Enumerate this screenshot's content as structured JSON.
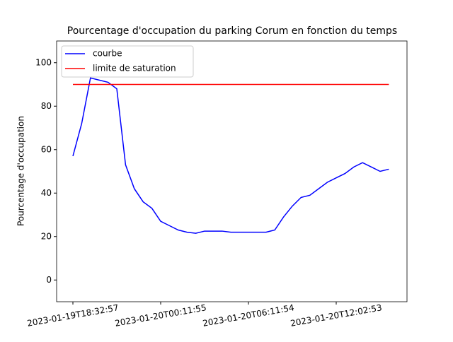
{
  "chart_data": {
    "type": "line",
    "title": "Pourcentage d'occupation du parking Corum en fonction du temps",
    "y_label": "Pourcentage d'occupation",
    "categories": [
      "2023-01-19T18:32:57",
      null,
      null,
      null,
      null,
      null,
      null,
      null,
      null,
      null,
      "2023-01-20T00:11:55",
      null,
      null,
      null,
      null,
      null,
      null,
      null,
      null,
      null,
      "2023-01-20T06:11:54",
      null,
      null,
      null,
      null,
      null,
      null,
      null,
      null,
      null,
      "2023-01-20T12:02:53",
      null,
      null,
      null,
      null,
      null,
      null
    ],
    "series": [
      {
        "name": "courbe",
        "color": "#0000ff",
        "values": [
          57,
          72,
          93,
          92,
          91,
          88,
          53,
          42,
          36,
          33,
          27,
          25,
          23,
          22,
          21.5,
          22.5,
          22.5,
          22.5,
          22,
          22,
          22,
          22,
          22,
          23,
          29,
          34,
          38,
          39,
          42,
          45,
          47,
          49,
          52,
          54,
          52,
          50,
          51
        ]
      },
      {
        "name": "limite de saturation",
        "color": "#ff0000",
        "values": [
          90,
          90,
          90,
          90,
          90,
          90,
          90,
          90,
          90,
          90,
          90,
          90,
          90,
          90,
          90,
          90,
          90,
          90,
          90,
          90,
          90,
          90,
          90,
          90,
          90,
          90,
          90,
          90,
          90,
          90,
          90,
          90,
          90,
          90,
          90,
          90,
          90
        ]
      }
    ],
    "ylim": [
      -10,
      110
    ],
    "yticks": [
      0,
      20,
      40,
      60,
      80,
      100
    ],
    "legend": "upper left",
    "grid": false
  }
}
